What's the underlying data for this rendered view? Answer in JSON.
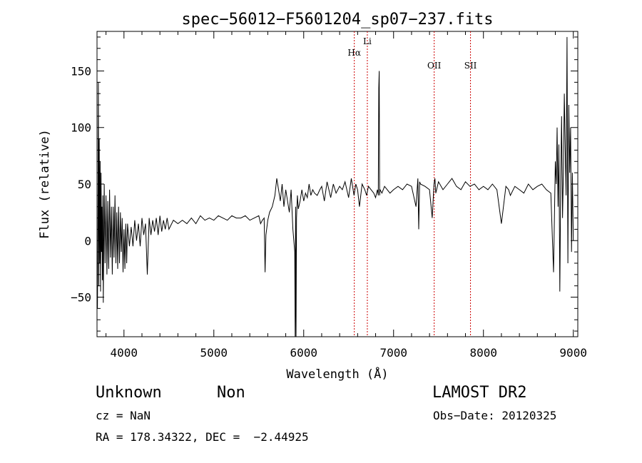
{
  "chart_data": {
    "type": "line",
    "title": "spec−56012−F5601204_sp07−237.fits",
    "xlabel": "Wavelength (Å)",
    "ylabel": "Flux (relative)",
    "xlim": [
      3700,
      9050
    ],
    "ylim": [
      -85,
      185
    ],
    "xticks": [
      4000,
      5000,
      6000,
      7000,
      8000,
      9000
    ],
    "yticks": [
      -50,
      0,
      50,
      100,
      150
    ],
    "ytick_labels": [
      "−50",
      "0",
      "50",
      "100",
      "150"
    ],
    "grid": false,
    "lines": [
      {
        "label": "Hα",
        "x": 6563
      },
      {
        "label": "Li",
        "x": 6708
      },
      {
        "label": "OII",
        "x": 7452
      },
      {
        "label": "SII",
        "x": 7856
      }
    ],
    "series": [
      {
        "x": [
          3705,
          3710,
          3715,
          3720,
          3725,
          3730,
          3735,
          3740,
          3745,
          3750,
          3755,
          3760,
          3765,
          3770,
          3780,
          3790,
          3800,
          3810,
          3820,
          3830,
          3840,
          3850,
          3860,
          3870,
          3880,
          3890,
          3900,
          3910,
          3920,
          3930,
          3940,
          3950,
          3960,
          3970,
          3980,
          3990,
          4000,
          4010,
          4020,
          4030,
          4040,
          4060,
          4080,
          4100,
          4120,
          4140,
          4160,
          4180,
          4200,
          4220,
          4240,
          4260,
          4280,
          4300,
          4320,
          4340,
          4360,
          4380,
          4400,
          4420,
          4440,
          4460,
          4480,
          4500,
          4550,
          4600,
          4650,
          4700,
          4750,
          4800,
          4850,
          4900,
          4950,
          5000,
          5050,
          5100,
          5150,
          5200,
          5250,
          5300,
          5350,
          5400,
          5450,
          5500,
          5520,
          5540,
          5560,
          5570,
          5580,
          5600,
          5620,
          5650,
          5680,
          5700,
          5720,
          5740,
          5760,
          5780,
          5800,
          5820,
          5840,
          5860,
          5880,
          5900,
          5905,
          5910,
          5915,
          5920,
          5930,
          5940,
          5960,
          5980,
          6000,
          6020,
          6040,
          6060,
          6080,
          6100,
          6120,
          6150,
          6180,
          6200,
          6230,
          6260,
          6300,
          6330,
          6360,
          6400,
          6430,
          6460,
          6500,
          6530,
          6560,
          6580,
          6600,
          6620,
          6650,
          6680,
          6700,
          6720,
          6750,
          6780,
          6800,
          6820,
          6830,
          6835,
          6840,
          6845,
          6850,
          6870,
          6900,
          6930,
          6960,
          7000,
          7050,
          7100,
          7150,
          7200,
          7250,
          7270,
          7280,
          7290,
          7300,
          7350,
          7400,
          7430,
          7450,
          7460,
          7470,
          7500,
          7550,
          7600,
          7650,
          7700,
          7750,
          7800,
          7850,
          7900,
          7950,
          8000,
          8050,
          8100,
          8150,
          8200,
          8250,
          8280,
          8300,
          8350,
          8400,
          8450,
          8500,
          8550,
          8600,
          8650,
          8700,
          8750,
          8780,
          8800,
          8810,
          8820,
          8830,
          8840,
          8850,
          8860,
          8870,
          8880,
          8890,
          8900,
          8910,
          8920,
          8930,
          8940,
          8950,
          8960,
          8970,
          8980,
          8990,
          9000
        ],
        "y": [
          -60,
          10,
          140,
          -40,
          90,
          -20,
          70,
          -45,
          60,
          -10,
          30,
          -35,
          40,
          -55,
          50,
          -20,
          40,
          -30,
          35,
          -25,
          45,
          -15,
          30,
          -30,
          30,
          -15,
          40,
          -20,
          25,
          -25,
          30,
          -20,
          25,
          -10,
          20,
          -28,
          10,
          -25,
          15,
          -20,
          15,
          -5,
          12,
          -5,
          18,
          0,
          15,
          -5,
          20,
          5,
          15,
          -30,
          20,
          5,
          18,
          8,
          20,
          5,
          22,
          8,
          18,
          10,
          20,
          10,
          18,
          15,
          18,
          15,
          20,
          15,
          22,
          18,
          20,
          18,
          22,
          20,
          18,
          22,
          20,
          20,
          22,
          18,
          20,
          22,
          15,
          18,
          20,
          -28,
          5,
          18,
          25,
          30,
          40,
          55,
          45,
          35,
          50,
          30,
          45,
          35,
          25,
          45,
          10,
          -10,
          -85,
          30,
          -85,
          20,
          40,
          28,
          35,
          45,
          35,
          42,
          38,
          50,
          40,
          45,
          42,
          40,
          45,
          48,
          35,
          52,
          38,
          50,
          42,
          48,
          45,
          52,
          38,
          55,
          40,
          50,
          45,
          30,
          50,
          45,
          40,
          48,
          45,
          42,
          38,
          45,
          40,
          135,
          150,
          40,
          45,
          42,
          48,
          45,
          42,
          45,
          48,
          45,
          50,
          48,
          30,
          55,
          10,
          52,
          50,
          48,
          45,
          20,
          50,
          55,
          42,
          52,
          45,
          50,
          55,
          48,
          45,
          52,
          48,
          50,
          45,
          48,
          45,
          50,
          45,
          15,
          48,
          45,
          40,
          48,
          45,
          42,
          50,
          45,
          48,
          50,
          45,
          42,
          -28,
          70,
          50,
          100,
          30,
          85,
          -45,
          55,
          110,
          20,
          60,
          130,
          80,
          40,
          180,
          -20,
          120,
          60,
          100,
          -10,
          60,
          0
        ]
      }
    ]
  },
  "footer": {
    "object_class": "Unknown",
    "subclass": "Non",
    "cz": "cz = NaN",
    "radec": "RA = 178.34322, DEC =  −2.44925",
    "survey": "LAMOST DR2",
    "obs_date": "Obs−Date: 20120325"
  },
  "colors": {
    "spectrum": "#000000",
    "line_markers": "#cc0000",
    "axes": "#000000"
  }
}
